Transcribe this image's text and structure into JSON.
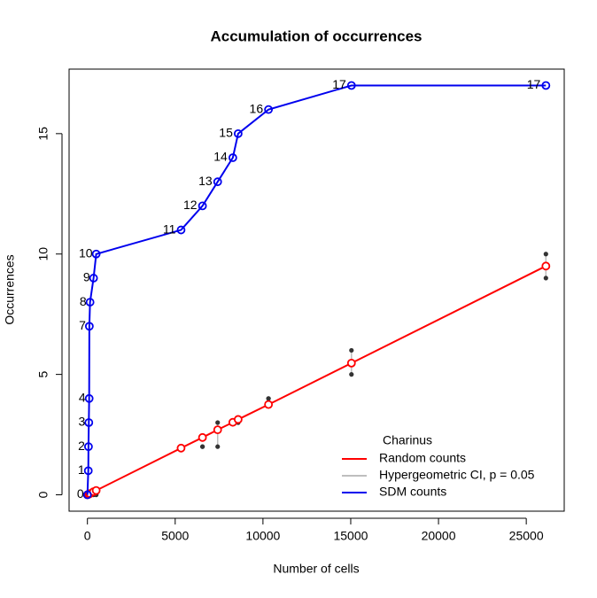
{
  "chart_data": {
    "type": "line",
    "title": "Accumulation of occurrences",
    "x_label": "Number of cells",
    "y_label": "Occurrences",
    "legend_title": "Charinus",
    "legend": "bottomright",
    "xlim": [
      -1044,
      27162
    ],
    "ylim": [
      -0.68,
      17.68
    ],
    "xticks": [
      0,
      5000,
      10000,
      15000,
      20000,
      25000
    ],
    "yticks": [
      0,
      5,
      10,
      15
    ],
    "x": [
      0,
      50,
      60,
      80,
      100,
      110,
      150,
      350,
      500,
      5335,
      6555,
      7419,
      8283,
      8587,
      10315,
      15041,
      26118
    ],
    "series": [
      {
        "name": "Random counts",
        "color": "#ff0000",
        "values": [
          0,
          0.02,
          0.02,
          0.03,
          0.04,
          0.04,
          0.05,
          0.13,
          0.18,
          1.94,
          2.38,
          2.7,
          3.01,
          3.13,
          3.75,
          5.47,
          9.5
        ]
      },
      {
        "name": "Hypergeometric CI, p = 0.05",
        "color": "#bebebe",
        "point_color": "#333333",
        "lower": [
          0,
          0,
          0,
          0,
          0,
          0,
          0,
          0,
          0,
          2,
          2,
          2,
          3,
          3,
          4,
          5,
          9
        ],
        "upper": [
          0,
          0,
          0,
          0,
          0,
          0,
          0,
          0,
          0,
          2,
          2,
          3,
          3,
          3,
          4,
          6,
          10
        ]
      },
      {
        "name": "SDM counts",
        "color": "#0000ee",
        "values": [
          0,
          1,
          2,
          3,
          4,
          7,
          8,
          9,
          10,
          11,
          12,
          13,
          14,
          15,
          16,
          17,
          17
        ]
      }
    ]
  }
}
